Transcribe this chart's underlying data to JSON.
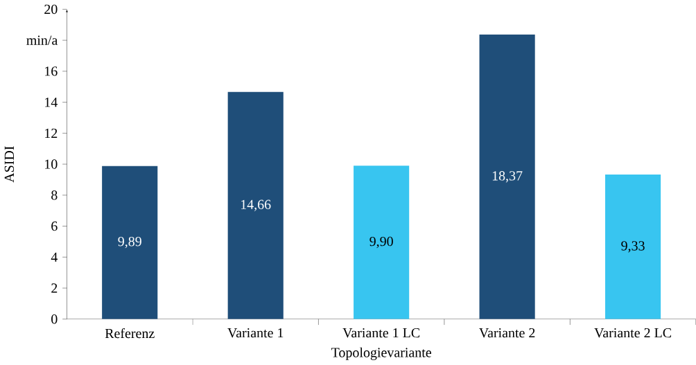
{
  "chart_data": {
    "type": "bar",
    "xlabel": "Topologievariante",
    "ylabel": "ASIDI",
    "categories": [
      "Referenz",
      "Variante 1",
      "Variante 1 LC",
      "Variante 2",
      "Variante 2 LC"
    ],
    "values": [
      9.89,
      14.66,
      9.9,
      18.37,
      9.33
    ],
    "value_labels": [
      "9,89",
      "14,66",
      "9,90",
      "18,37",
      "9,33"
    ],
    "colors": [
      "#1f4e79",
      "#1f4e79",
      "#38c5f0",
      "#1f4e79",
      "#38c5f0"
    ],
    "ylim": [
      0,
      20
    ],
    "yticks": [
      0,
      2,
      4,
      6,
      8,
      10,
      12,
      14,
      16,
      {
        "value": 18,
        "label": "min/a"
      },
      20
    ],
    "grid": false
  }
}
